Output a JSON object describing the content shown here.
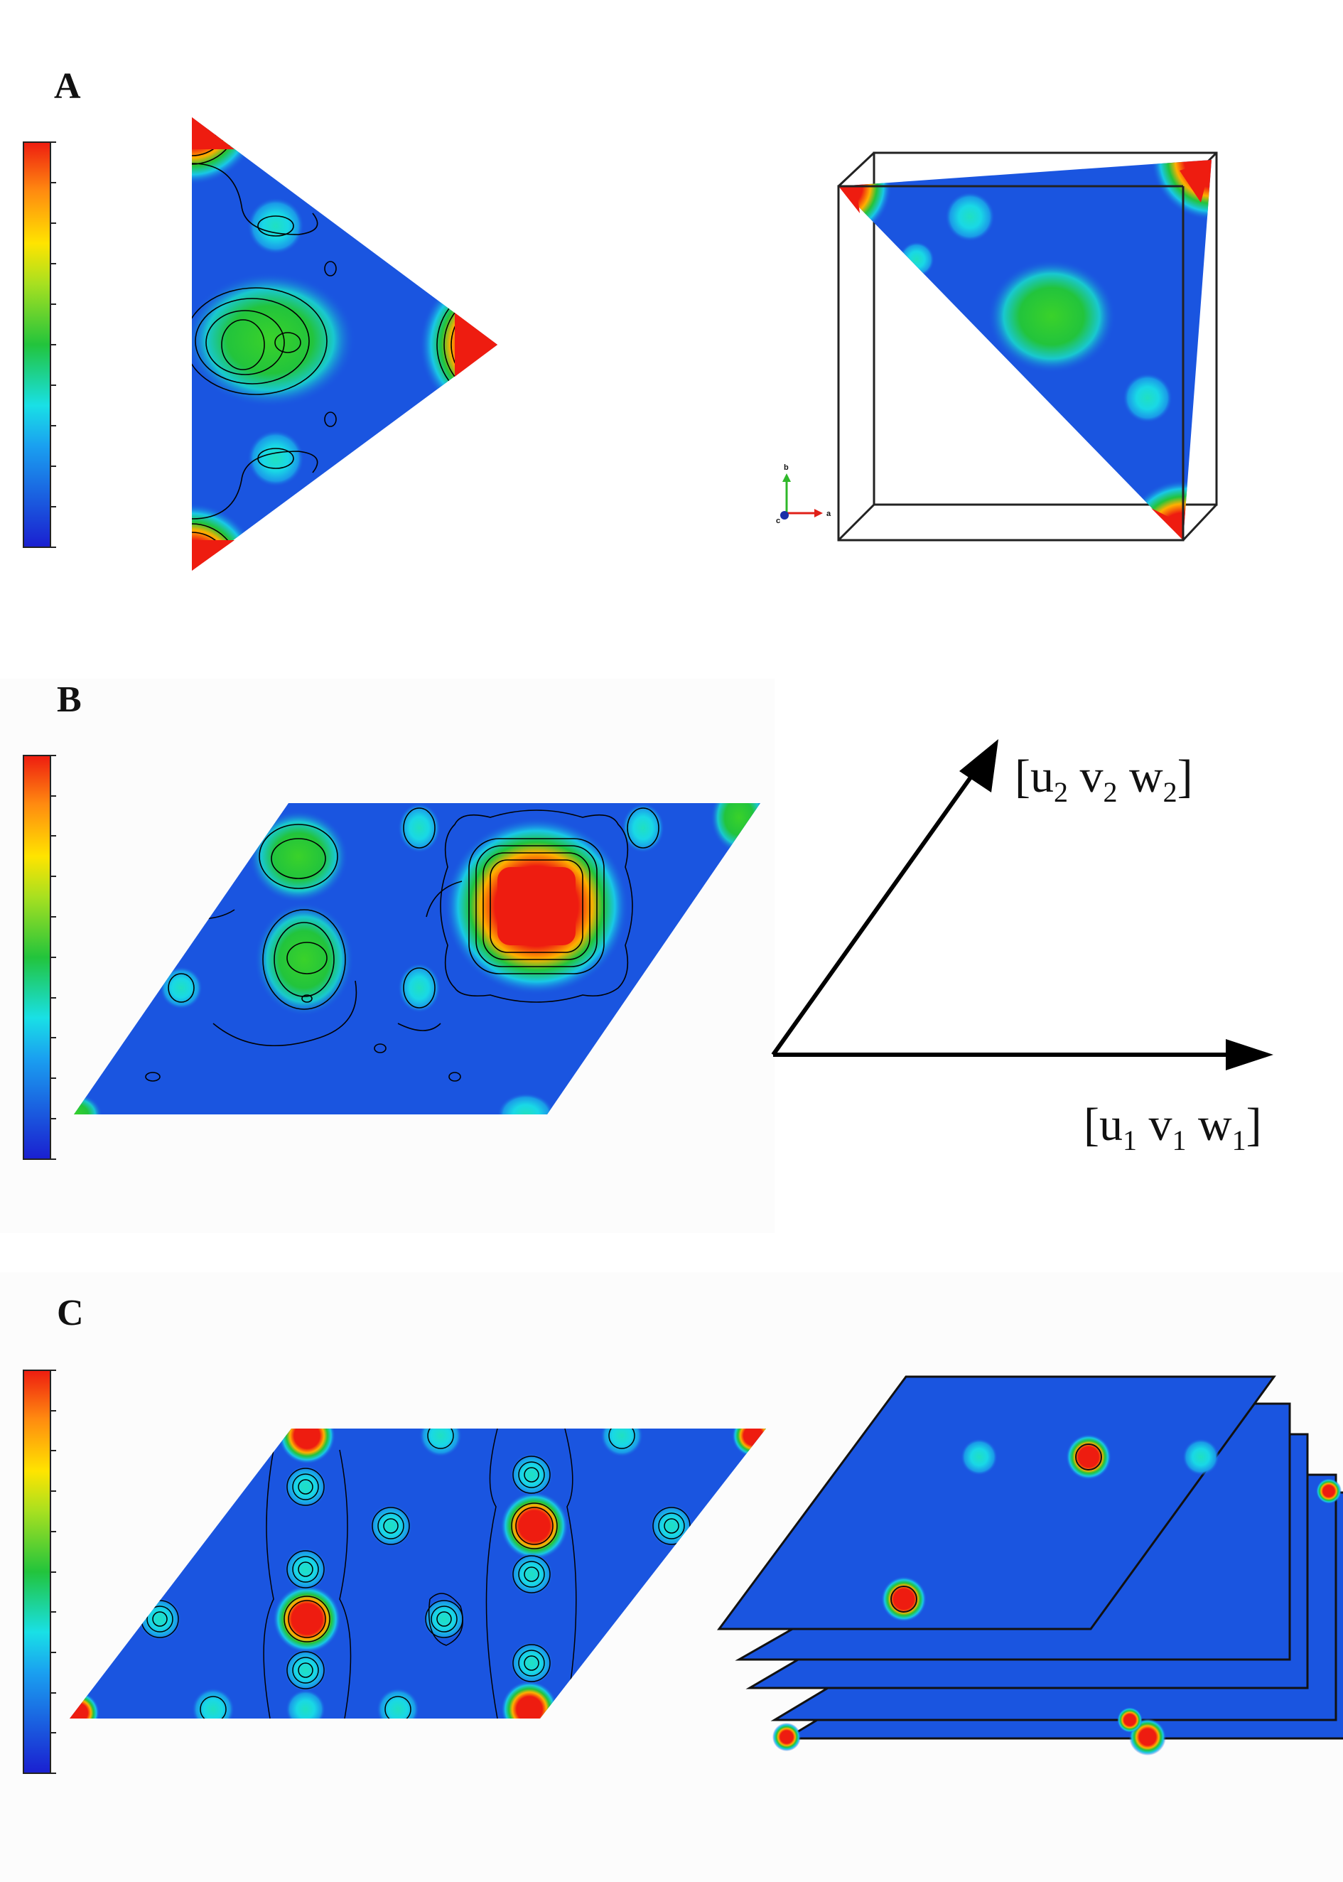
{
  "panels": [
    {
      "id": "A",
      "label": "A"
    },
    {
      "id": "B",
      "label": "B"
    },
    {
      "id": "C",
      "label": "C"
    }
  ],
  "axis_triad": {
    "x_label": "a",
    "y_label": "b",
    "z_label": "c"
  },
  "vectors": {
    "v1": {
      "u": "u",
      "v": "v",
      "w": "w",
      "index": "1"
    },
    "v2": {
      "u": "u",
      "v": "v",
      "w": "w",
      "index": "2"
    }
  },
  "colors": {
    "low": "#1a3dd6",
    "cyan": "#19e0e6",
    "green": "#22c43c",
    "yellow": "#ffe400",
    "high": "#ee1c10"
  },
  "colorbar": {
    "tick_count": 11
  }
}
